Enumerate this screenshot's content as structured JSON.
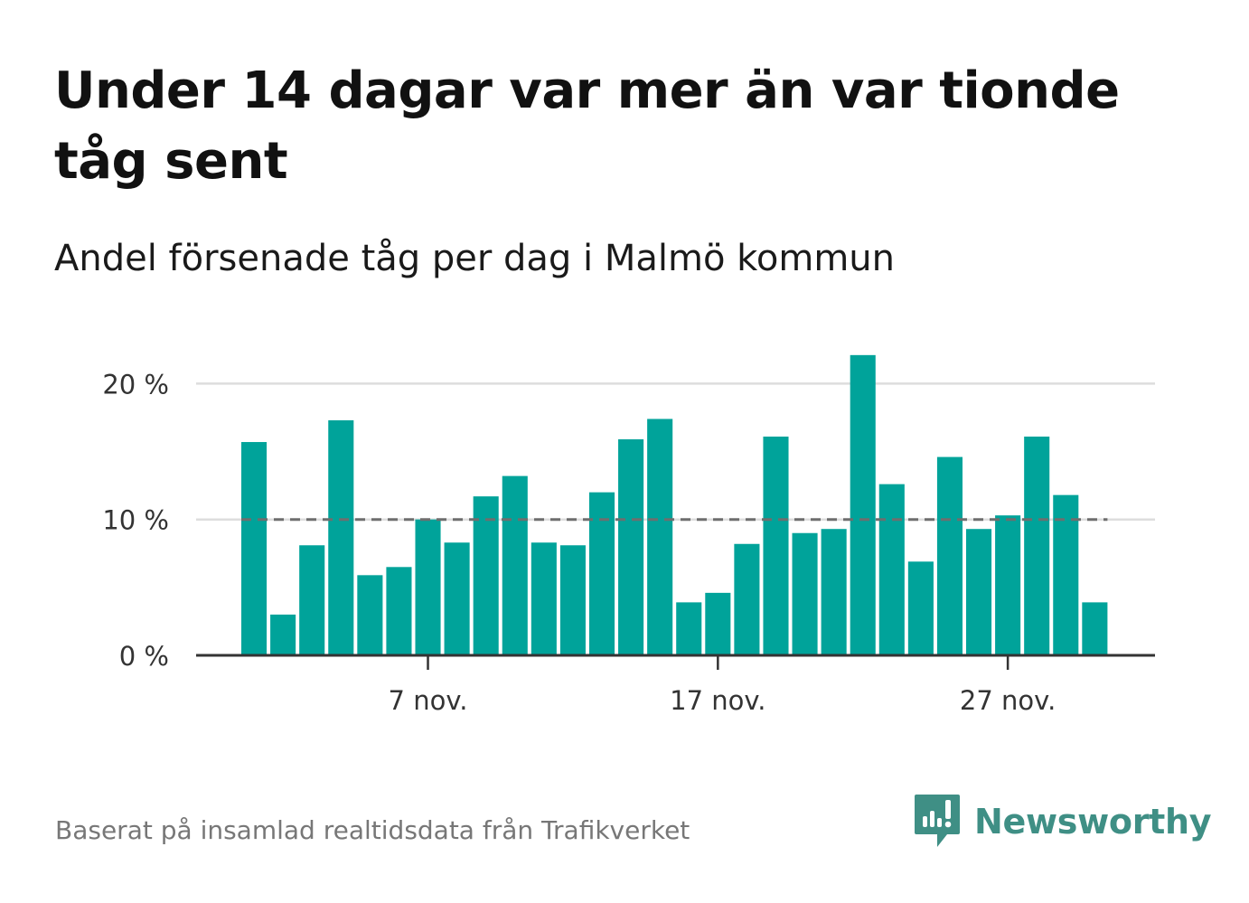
{
  "title": "Under 14 dagar var mer än var tionde tåg sent",
  "subtitle": "Andel försenade tåg per dag i Malmö kommun",
  "footer": "Baserat på insamlad realtidsdata från Trafikverket",
  "brand": {
    "name": "Newsworthy",
    "icon": "newsworthy-logo-icon",
    "color": "#3f8f85"
  },
  "colors": {
    "bar": "#00a39a",
    "threshold": "#6e6e6e",
    "grid": "#dddddd",
    "axis": "#333333"
  },
  "chart_data": {
    "type": "bar",
    "x_unit": "dag i november",
    "x": [
      1,
      2,
      3,
      4,
      5,
      6,
      7,
      8,
      9,
      10,
      11,
      12,
      13,
      14,
      15,
      16,
      17,
      18,
      19,
      20,
      21,
      22,
      23,
      24,
      25,
      26,
      27,
      28,
      29,
      30
    ],
    "values": [
      15.7,
      3.0,
      8.1,
      17.3,
      5.9,
      6.5,
      10.0,
      8.3,
      11.7,
      13.2,
      8.3,
      8.1,
      12.0,
      15.9,
      17.4,
      3.9,
      4.6,
      8.2,
      16.1,
      9.0,
      9.3,
      22.1,
      12.6,
      6.9,
      14.6,
      9.3,
      10.3,
      16.1,
      11.8,
      3.9
    ],
    "ylim": [
      0,
      22.1
    ],
    "yticks": [
      {
        "value": 0,
        "label": "0 %"
      },
      {
        "value": 10,
        "label": "10 %"
      },
      {
        "value": 20,
        "label": "20 %"
      }
    ],
    "xticks": [
      {
        "x": 7,
        "label": "7 nov."
      },
      {
        "x": 17,
        "label": "17 nov."
      },
      {
        "x": 27,
        "label": "27 nov."
      }
    ],
    "threshold": 10,
    "grid": true,
    "xlabel": "",
    "ylabel": ""
  }
}
